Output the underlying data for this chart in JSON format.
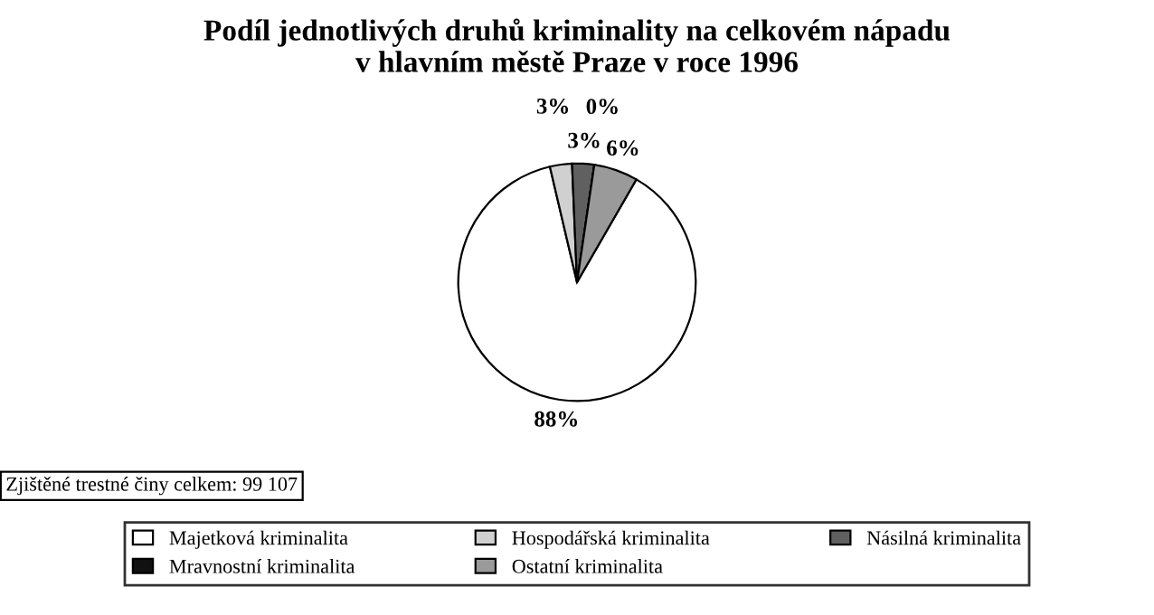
{
  "chart_data": {
    "type": "pie",
    "title": "Podíl jednotlivých druhů kriminality na celkovém nápadu\nv hlavním městě Praze v roce 1996",
    "categories": [
      "Majetková kriminalita",
      "Hospodářská kriminalita",
      "Násilná kriminalita",
      "Mravnostní kriminalita",
      "Ostatní kriminalita"
    ],
    "values": [
      88,
      3,
      3,
      0,
      6
    ],
    "value_labels": [
      "88%",
      "3%",
      "3%",
      "0%",
      "6%"
    ],
    "colors": [
      "#ffffff",
      "#d0d0d0",
      "#606060",
      "#111111",
      "#9a9a9a"
    ],
    "legend": "bottom",
    "annotations": [
      "Zjištěné trestné činy celkem: 99 107"
    ]
  }
}
